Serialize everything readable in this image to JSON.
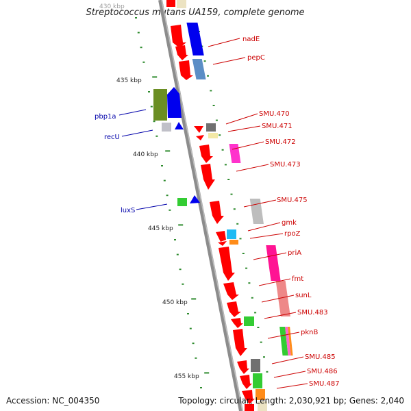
{
  "title": "Streptococcus mutans UA159, complete genome",
  "accession_label": "Accession: NC_004350",
  "stats_label": "Topology: circular; Length: 2,030,921 bp; Genes: 2,040",
  "ruler": {
    "top_partial_label": "430 kbp",
    "labels": [
      {
        "kbp": 435,
        "text": "435 kbp"
      },
      {
        "kbp": 440,
        "text": "440 kbp"
      },
      {
        "kbp": 445,
        "text": "445 kbp"
      },
      {
        "kbp": 450,
        "text": "450 kbp"
      },
      {
        "kbp": 455,
        "text": "455 kbp"
      }
    ]
  },
  "colors": {
    "backbone": "#8c8c8c",
    "forward_label": "#cc0000",
    "reverse_label": "#0000aa",
    "tick": "#2e8b2e",
    "forward_gene": "#ff0000",
    "reverse_gene": "#0000ff"
  },
  "genes_forward": [
    "nadE",
    "pepC",
    "SMU.470",
    "SMU.471",
    "SMU.472",
    "SMU.473",
    "SMU.475",
    "gmk",
    "rpoZ",
    "priA",
    "fmt",
    "sunL",
    "SMU.483",
    "pknB",
    "SMU.485",
    "SMU.486",
    "SMU.487"
  ],
  "genes_reverse": [
    "pbp1a",
    "recU",
    "luxS"
  ]
}
